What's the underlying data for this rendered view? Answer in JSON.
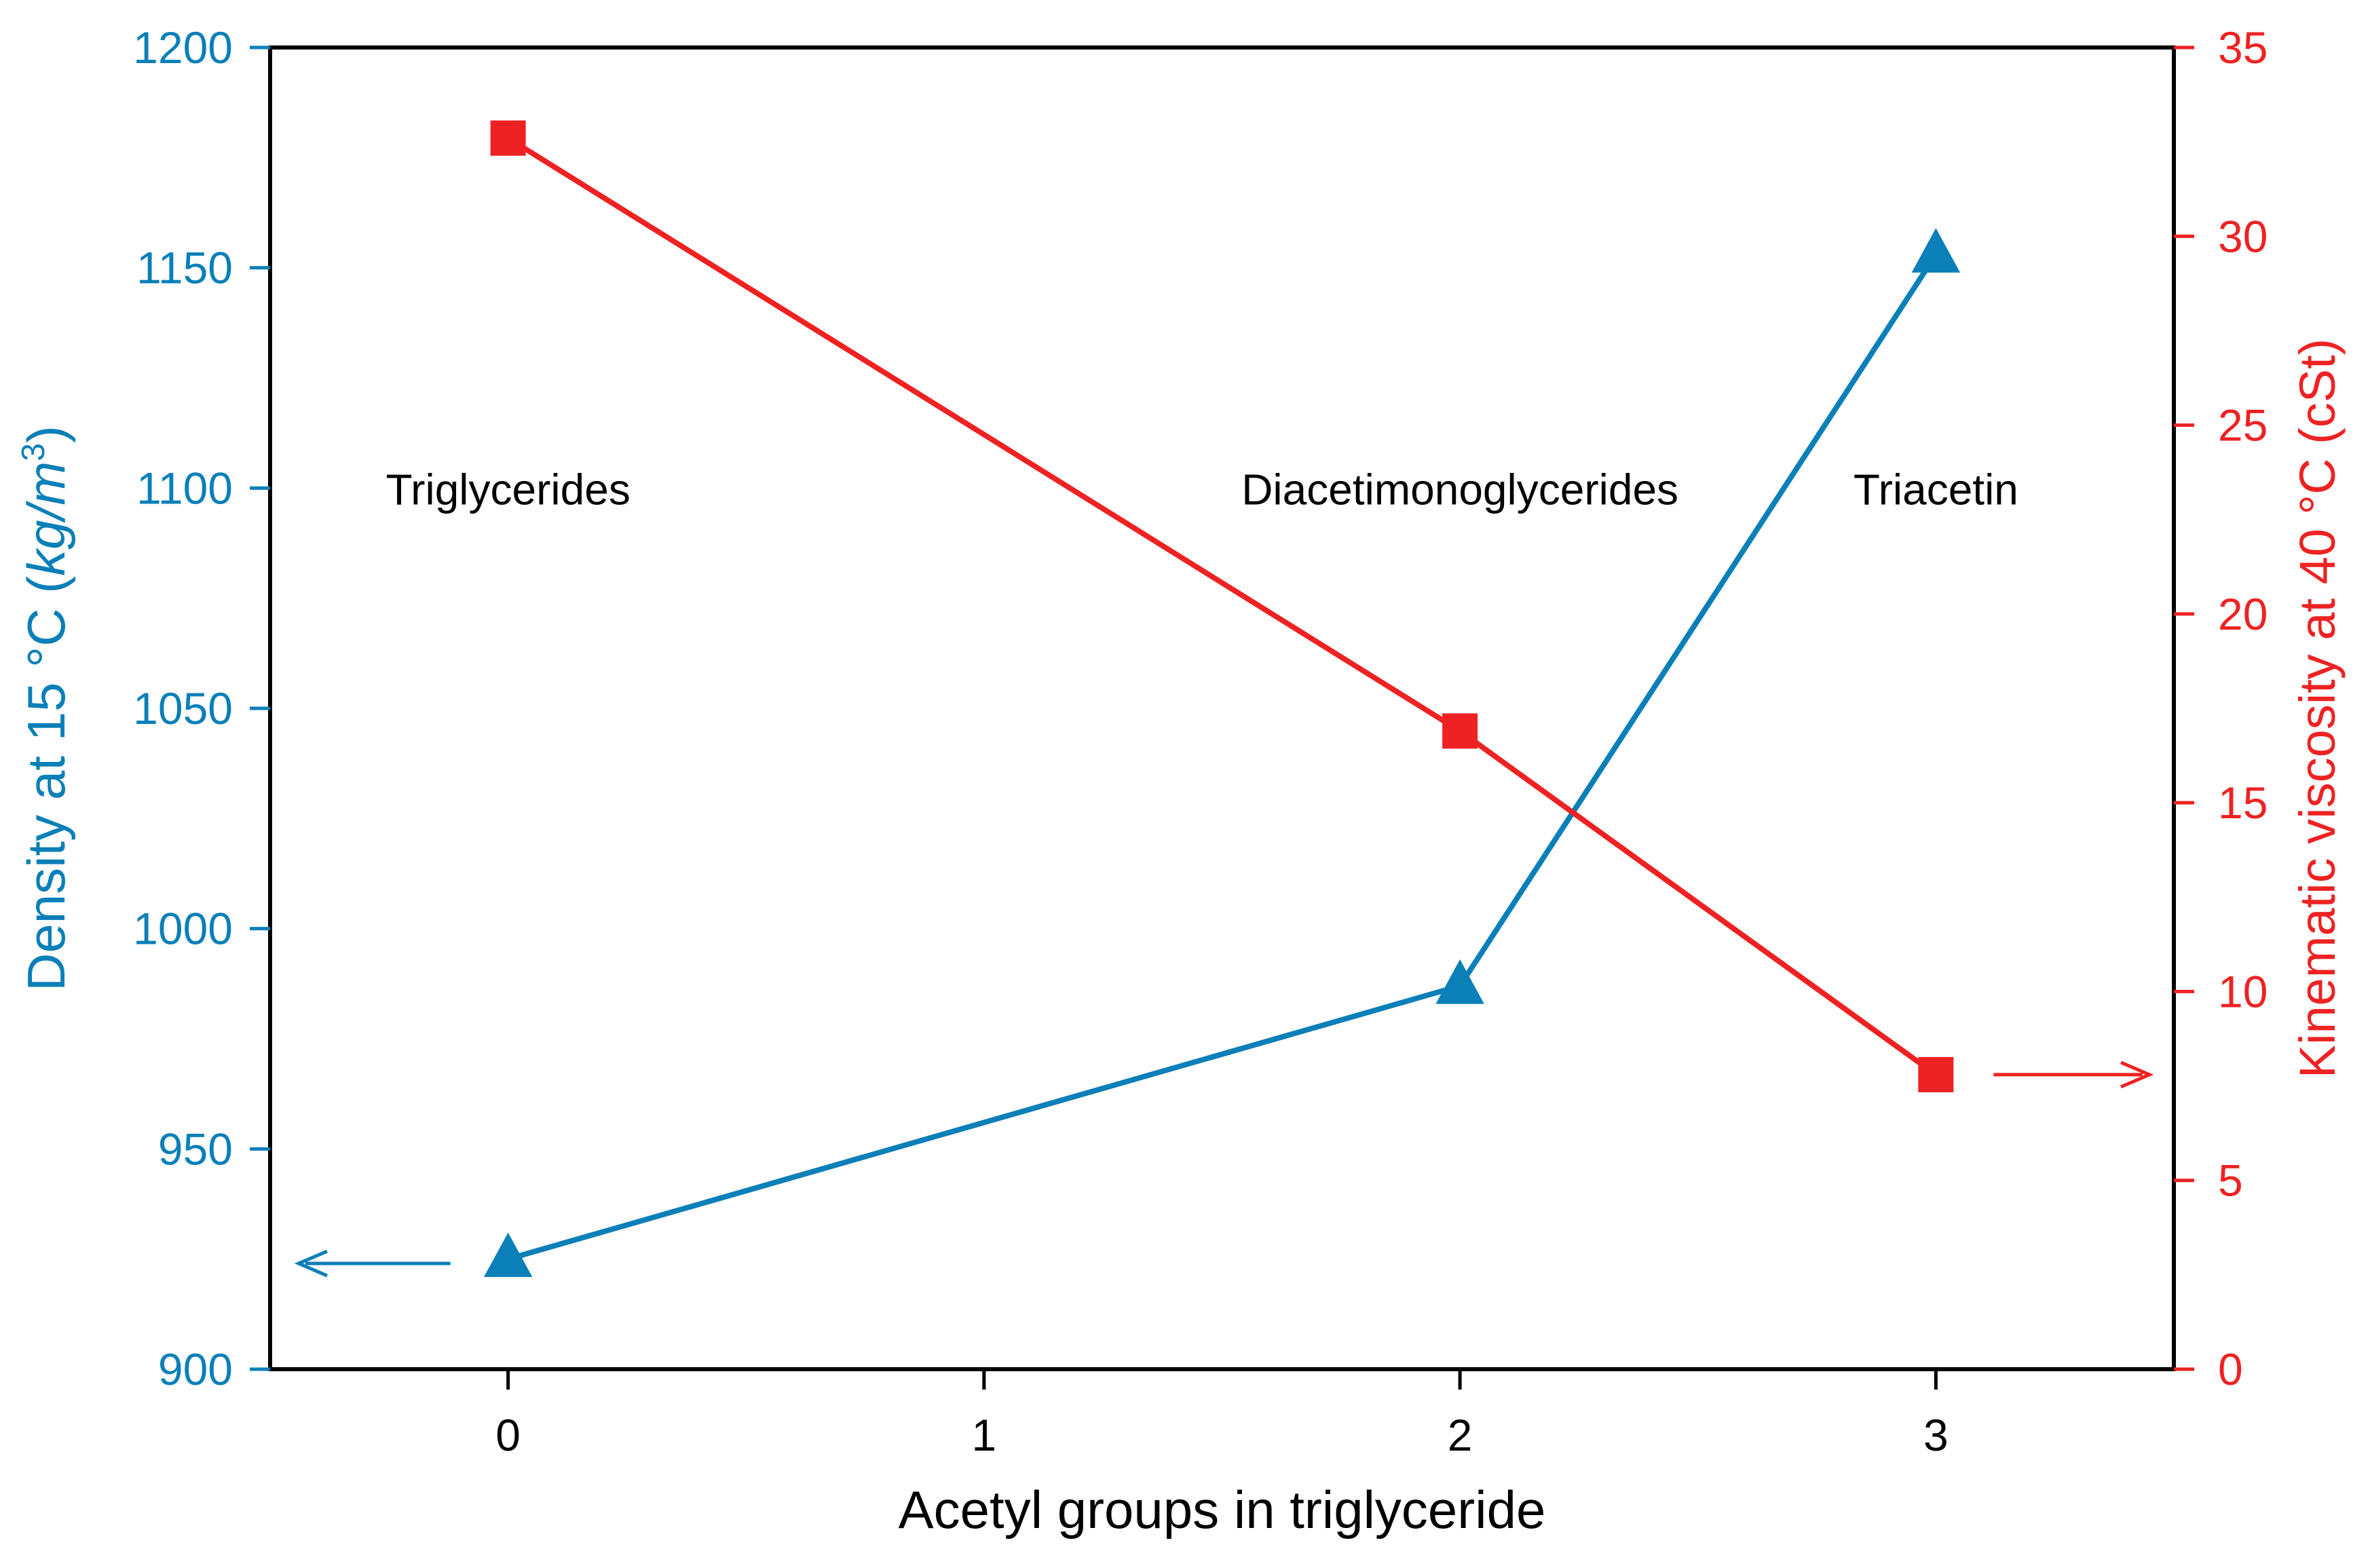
{
  "chart_data": {
    "type": "line",
    "title": "",
    "xlabel": "Acetyl groups in triglyceride",
    "x_ticks": [
      0,
      1,
      2,
      3
    ],
    "xlim": [
      -0.5,
      3.5
    ],
    "y_left": {
      "label_prefix": "Density at 15 °C (",
      "label_unit": "kg/m",
      "label_sup": "3",
      "label_suffix": ")",
      "ylim": [
        900,
        1200
      ],
      "ticks": [
        900,
        950,
        1000,
        1050,
        1100,
        1150,
        1200
      ],
      "color": "#0a7fb8"
    },
    "y_right": {
      "label": "Kinematic viscosity at 40 °C (cSt)",
      "ylim": [
        0,
        35
      ],
      "ticks": [
        0,
        5,
        10,
        15,
        20,
        25,
        30,
        35
      ],
      "color": "#ee2222"
    },
    "series": [
      {
        "name": "Density",
        "axis": "left",
        "marker": "triangle",
        "color": "#0a7fb8",
        "x": [
          0,
          2,
          3
        ],
        "values": [
          925,
          987,
          1153
        ]
      },
      {
        "name": "Kinematic viscosity",
        "axis": "right",
        "marker": "square",
        "color": "#ee2222",
        "x": [
          0,
          2,
          3
        ],
        "values": [
          32.6,
          16.9,
          7.8
        ]
      }
    ],
    "annotations": [
      {
        "text": "Triglycerides",
        "x": 0,
        "y_left": 1100
      },
      {
        "text": "Diacetimonoglycerides",
        "x": 2,
        "y_left": 1100
      },
      {
        "text": "Triacetin",
        "x": 3,
        "y_left": 1100
      }
    ],
    "axis_arrows": [
      {
        "series": "Density",
        "direction": "left",
        "y_left": 924
      },
      {
        "series": "Kinematic viscosity",
        "direction": "right",
        "y_right": 7.8
      }
    ]
  }
}
